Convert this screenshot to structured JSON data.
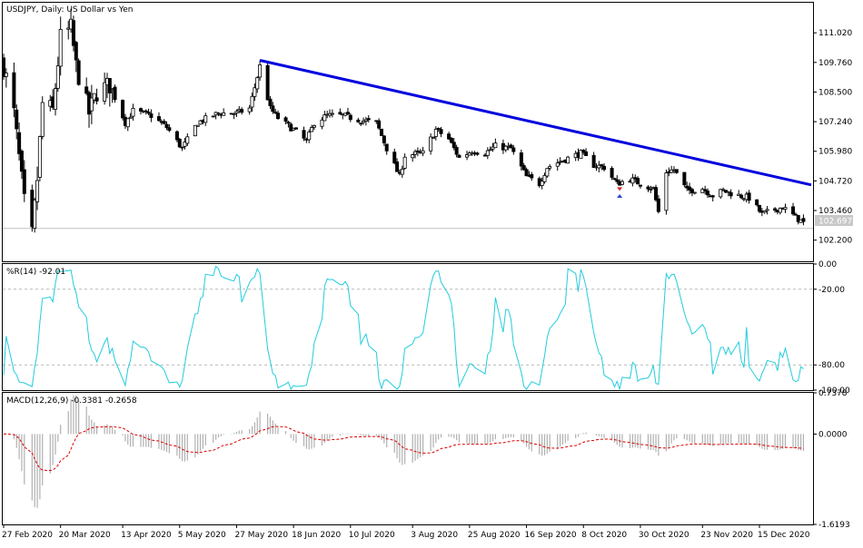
{
  "chart_data": [
    {
      "type": "candlestick",
      "title": "USDJPY, Daily:  US Dollar vs Yen",
      "ylim": [
        101.3,
        112.3
      ],
      "yticks": [
        "111.020",
        "109.760",
        "108.500",
        "107.240",
        "105.980",
        "104.720",
        "103.460",
        "102.200"
      ],
      "ytick_values": [
        111.02,
        109.76,
        108.5,
        107.24,
        105.98,
        104.72,
        103.46,
        102.2
      ],
      "current_price_label": "102.697",
      "current_price": 102.697,
      "trendline": {
        "from_x": "2020-06-05",
        "from_y": 109.85,
        "to_x": "2021-01-04",
        "to_y": 104.55,
        "color": "#0000dd"
      },
      "anchors": [
        [
          "2020-02-27",
          109.6
        ],
        [
          "2020-03-02",
          107.6
        ],
        [
          "2020-03-06",
          103.8
        ],
        [
          "2020-03-09",
          102.4
        ],
        [
          "2020-03-11",
          104.8
        ],
        [
          "2020-03-13",
          108.0
        ],
        [
          "2020-03-17",
          107.7
        ],
        [
          "2020-03-20",
          110.8
        ],
        [
          "2020-03-24",
          111.2
        ],
        [
          "2020-03-26",
          109.6
        ],
        [
          "2020-03-31",
          107.6
        ],
        [
          "2020-04-03",
          108.5
        ],
        [
          "2020-04-08",
          108.8
        ],
        [
          "2020-04-14",
          107.2
        ],
        [
          "2020-04-17",
          107.7
        ],
        [
          "2020-04-24",
          107.5
        ],
        [
          "2020-04-30",
          107.0
        ],
        [
          "2020-05-06",
          106.1
        ],
        [
          "2020-05-12",
          107.2
        ],
        [
          "2020-05-20",
          107.6
        ],
        [
          "2020-05-27",
          107.6
        ],
        [
          "2020-06-01",
          107.8
        ],
        [
          "2020-06-05",
          109.6
        ],
        [
          "2020-06-09",
          107.8
        ],
        [
          "2020-06-12",
          107.4
        ],
        [
          "2020-06-18",
          106.9
        ],
        [
          "2020-06-23",
          106.4
        ],
        [
          "2020-06-26",
          107.2
        ],
        [
          "2020-07-01",
          107.5
        ],
        [
          "2020-07-07",
          107.5
        ],
        [
          "2020-07-14",
          107.3
        ],
        [
          "2020-07-20",
          107.2
        ],
        [
          "2020-07-24",
          106.1
        ],
        [
          "2020-07-29",
          104.9
        ],
        [
          "2020-07-31",
          105.8
        ],
        [
          "2020-08-07",
          105.9
        ],
        [
          "2020-08-12",
          106.9
        ],
        [
          "2020-08-17",
          106.5
        ],
        [
          "2020-08-21",
          105.7
        ],
        [
          "2020-08-26",
          106.0
        ],
        [
          "2020-08-31",
          105.9
        ],
        [
          "2020-09-04",
          106.2
        ],
        [
          "2020-09-10",
          106.1
        ],
        [
          "2020-09-16",
          104.9
        ],
        [
          "2020-09-21",
          104.6
        ],
        [
          "2020-09-24",
          105.3
        ],
        [
          "2020-09-30",
          105.6
        ],
        [
          "2020-10-07",
          105.9
        ],
        [
          "2020-10-12",
          105.4
        ],
        [
          "2020-10-16",
          105.3
        ],
        [
          "2020-10-21",
          104.6
        ],
        [
          "2020-10-26",
          104.8
        ],
        [
          "2020-10-30",
          104.6
        ],
        [
          "2020-11-04",
          104.4
        ],
        [
          "2020-11-06",
          103.4
        ],
        [
          "2020-11-09",
          105.1
        ],
        [
          "2020-11-12",
          105.2
        ],
        [
          "2020-11-17",
          104.3
        ],
        [
          "2020-11-23",
          104.4
        ],
        [
          "2020-11-27",
          104.1
        ],
        [
          "2020-12-01",
          104.3
        ],
        [
          "2020-12-07",
          104.1
        ],
        [
          "2020-12-11",
          104.0
        ],
        [
          "2020-12-16",
          103.3
        ],
        [
          "2020-12-21",
          103.5
        ],
        [
          "2020-12-24",
          103.6
        ],
        [
          "2020-12-30",
          103.1
        ],
        [
          "2021-01-04",
          102.7
        ]
      ]
    },
    {
      "type": "line",
      "title": "%R(14) -92.01",
      "ylim": [
        -100,
        0
      ],
      "yticks": [
        "0.00",
        "-20.00",
        "-80.00",
        "-100.00"
      ],
      "ytick_values": [
        0,
        -20,
        -80,
        -100
      ],
      "levels": [
        -20,
        -80
      ],
      "color": "#22ccdd"
    },
    {
      "type": "bar+line",
      "title": "MACD(12,26,9) -0.3381 -0.2658",
      "ylim": [
        -1.6193,
        0.7378
      ],
      "yticks": [
        "0.7378",
        "0.0000",
        "-1.6193"
      ],
      "ytick_values": [
        0.7378,
        0,
        -1.6193
      ],
      "histogram_color": "#b0b0b0",
      "signal_color": "#dd0000"
    }
  ],
  "xaxis": {
    "labels": [
      "27 Feb 2020",
      "20 Mar 2020",
      "13 Apr 2020",
      "5 May 2020",
      "27 May 2020",
      "18 Jun 2020",
      "10 Jul 2020",
      "3 Aug 2020",
      "25 Aug 2020",
      "16 Sep 2020",
      "8 Oct 2020",
      "30 Oct 2020",
      "23 Nov 2020",
      "15 Dec 2020"
    ],
    "dates": [
      "2020-02-27",
      "2020-03-20",
      "2020-04-13",
      "2020-05-05",
      "2020-05-27",
      "2020-06-18",
      "2020-07-10",
      "2020-08-03",
      "2020-08-25",
      "2020-09-16",
      "2020-10-08",
      "2020-10-30",
      "2020-11-23",
      "2020-12-15"
    ]
  }
}
